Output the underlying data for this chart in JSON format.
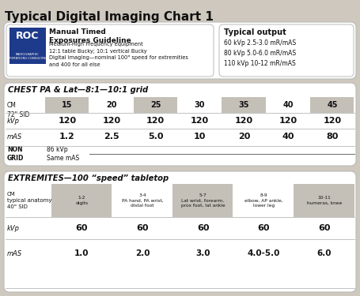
{
  "title": "Typical Digital Imaging Chart 1",
  "bg_color": "#cec8be",
  "panel_bg": "#f5f3ef",
  "gray_cell": "#c4c0b8",
  "section1_title": "CHEST PA & Lat—8:1—10:1 grid",
  "section2_title": "EXTREMITES—100 “speed” tabletop",
  "chest_cm": [
    "15",
    "20",
    "25",
    "30",
    "35",
    "40",
    "45"
  ],
  "chest_kvp": [
    "120",
    "120",
    "120",
    "120",
    "120",
    "120",
    "120"
  ],
  "chest_mas": [
    "1.2",
    "2.5",
    "5.0",
    "10",
    "20",
    "40",
    "80"
  ],
  "guideline_title": "Manual Timed\nExposures Guideline",
  "guideline_body": "Medium-High Frequency equipment\n12:1 table Bucky; 10:1 vertical Bucky\nDigital imaging—nominal 100\" speed for extremities\nand 400 for all else",
  "output_title": "Typical output",
  "output_body": "60 kVp 2.5-3.0 mR/mAS\n80 kVp 5.0-6.0 mR/mAS\n110 kVp 10-12 mR/mAS",
  "ext_cm_label": "CM\ntypical anatomy\n40\" SID",
  "ext_col_headers": [
    "1-2\ndigits",
    "3-4\nPA hand, PA wrist,\ndistal foot",
    "5-7\nLat wrist, forearm,\nprox foot, lat ankle",
    "8-9\nelbow, AP ankle,\nlower leg",
    "10-11\nhumeras, knee"
  ],
  "ext_kvp": [
    "60",
    "60",
    "60",
    "60",
    "60"
  ],
  "ext_mas": [
    "1.0",
    "2.0",
    "3.0",
    "4.0-5.0",
    "6.0"
  ],
  "roc_blue": "#1e3a8a",
  "dark": "#111111",
  "mid_gray": "#888888",
  "white": "#ffffff"
}
